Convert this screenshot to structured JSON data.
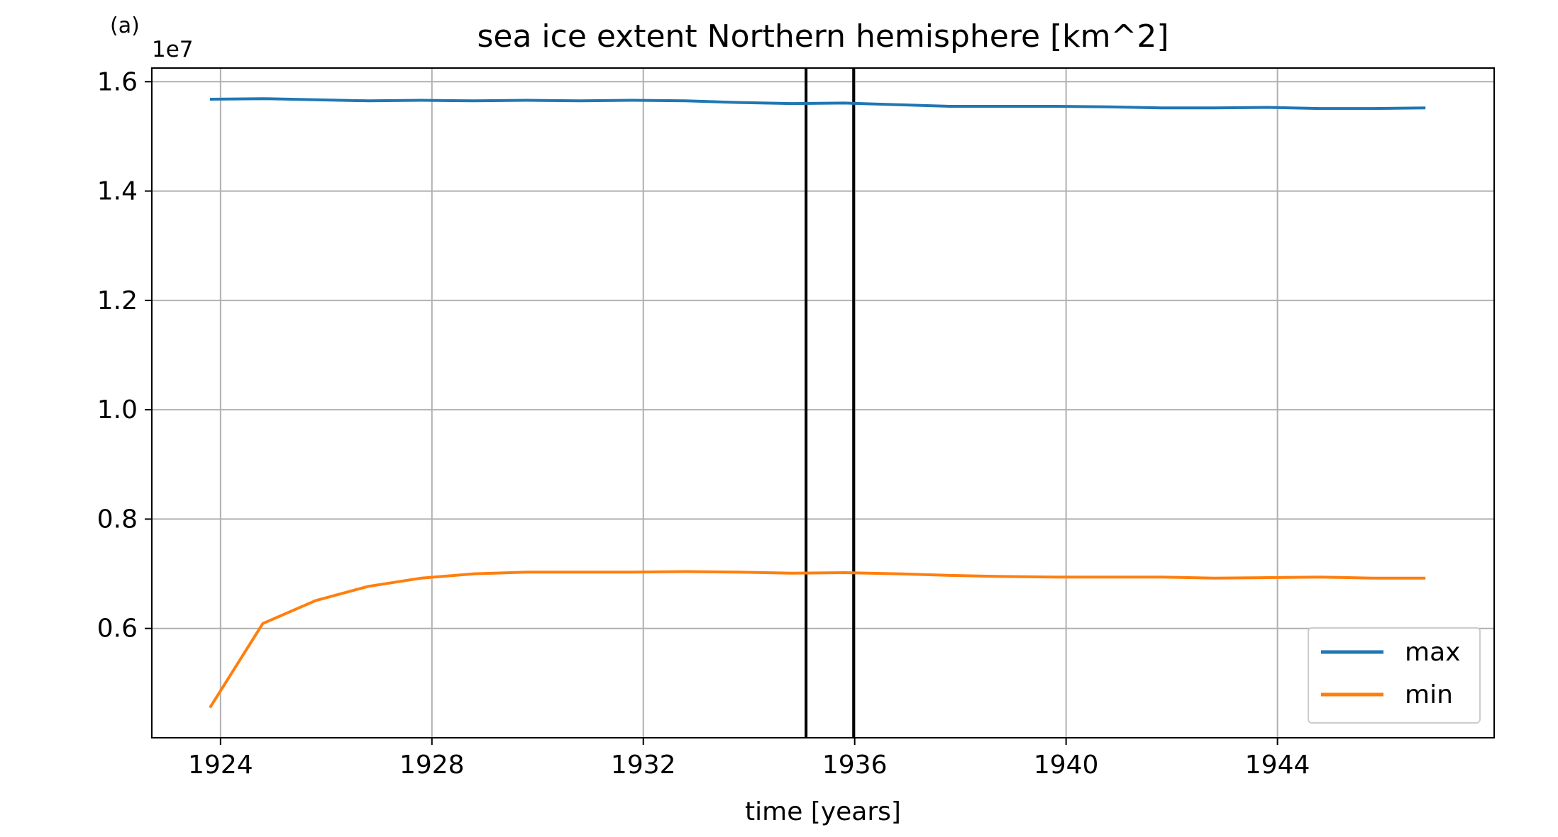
{
  "panel_label": "(a)",
  "chart_data": {
    "type": "line",
    "title": "sea ice extent Northern hemisphere [km^2]",
    "xlabel": "time [years]",
    "ylabel": "",
    "y_scale_note": "1e7",
    "xlim": [
      1922.7,
      1948.1
    ],
    "ylim": [
      0.4,
      1.625
    ],
    "x_ticks": [
      1924,
      1928,
      1932,
      1936,
      1940,
      1944
    ],
    "x_tick_labels": [
      "1924",
      "1928",
      "1932",
      "1936",
      "1940",
      "1944"
    ],
    "y_ticks": [
      0.6,
      0.8,
      1.0,
      1.2,
      1.4,
      1.6
    ],
    "y_tick_labels": [
      "0.6",
      "0.8",
      "1.0",
      "1.2",
      "1.4",
      "1.6"
    ],
    "grid": true,
    "legend_position": "lower-right",
    "vertical_lines": [
      1935.08,
      1935.98
    ],
    "x": [
      1923.8,
      1924.8,
      1925.8,
      1926.8,
      1927.8,
      1928.8,
      1929.8,
      1930.8,
      1931.8,
      1932.8,
      1933.8,
      1934.8,
      1935.8,
      1936.8,
      1937.8,
      1938.8,
      1939.8,
      1940.8,
      1941.8,
      1942.8,
      1943.8,
      1944.8,
      1945.8,
      1946.8
    ],
    "series": [
      {
        "name": "max",
        "color": "#1f77b4",
        "values": [
          1.568,
          1.569,
          1.567,
          1.565,
          1.566,
          1.565,
          1.566,
          1.565,
          1.566,
          1.565,
          1.562,
          1.56,
          1.561,
          1.558,
          1.555,
          1.555,
          1.555,
          1.554,
          1.552,
          1.552,
          1.553,
          1.551,
          1.551,
          1.552
        ]
      },
      {
        "name": "min",
        "color": "#ff7f0e",
        "values": [
          0.455,
          0.609,
          0.651,
          0.677,
          0.692,
          0.7,
          0.703,
          0.703,
          0.703,
          0.704,
          0.703,
          0.701,
          0.702,
          0.7,
          0.697,
          0.695,
          0.694,
          0.694,
          0.694,
          0.692,
          0.693,
          0.694,
          0.692,
          0.692
        ]
      }
    ]
  }
}
